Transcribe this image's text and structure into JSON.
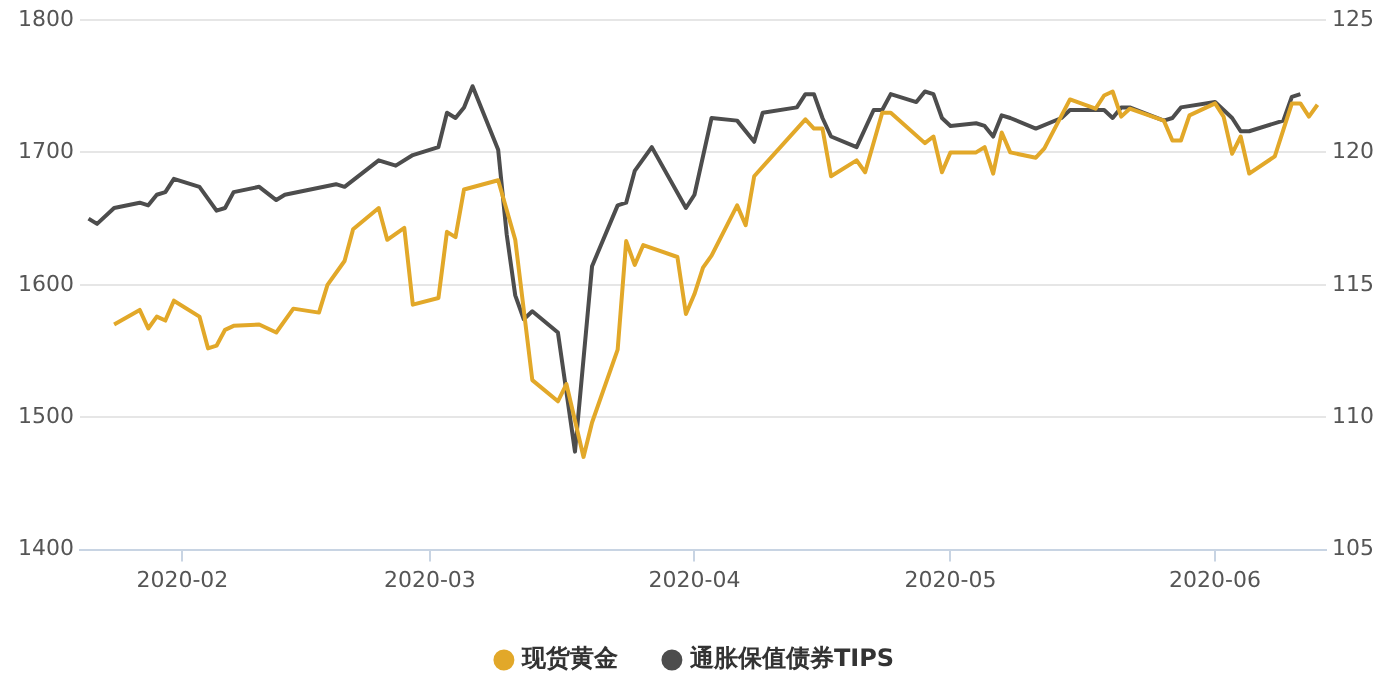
{
  "chart_data": {
    "type": "line",
    "xlim": [
      "2020-01-20",
      "2020-06-14"
    ],
    "xticks": [
      "2020-02",
      "2020-03",
      "2020-04",
      "2020-05",
      "2020-06"
    ],
    "ylim": [
      1400,
      1800
    ],
    "yticks": [
      1400,
      1500,
      1600,
      1700,
      1800
    ],
    "y2lim": [
      105,
      125
    ],
    "y2ticks": [
      105,
      110,
      115,
      120,
      125
    ],
    "grid": "y",
    "legend": "bottom",
    "line_style": "solid",
    "series": [
      {
        "name": "现货黄金",
        "color": "#e2a829",
        "x": [
          "2020-01-24",
          "2020-01-27",
          "2020-01-28",
          "2020-01-29",
          "2020-01-30",
          "2020-01-31",
          "2020-02-03",
          "2020-02-04",
          "2020-02-05",
          "2020-02-06",
          "2020-02-07",
          "2020-02-10",
          "2020-02-12",
          "2020-02-14",
          "2020-02-17",
          "2020-02-18",
          "2020-02-20",
          "2020-02-21",
          "2020-02-24",
          "2020-02-25",
          "2020-02-27",
          "2020-02-28",
          "2020-03-02",
          "2020-03-03",
          "2020-03-04",
          "2020-03-05",
          "2020-03-09",
          "2020-03-11",
          "2020-03-13",
          "2020-03-16",
          "2020-03-17",
          "2020-03-19",
          "2020-03-20",
          "2020-03-23",
          "2020-03-24",
          "2020-03-25",
          "2020-03-26",
          "2020-03-30",
          "2020-03-31",
          "2020-04-01",
          "2020-04-02",
          "2020-04-03",
          "2020-04-06",
          "2020-04-07",
          "2020-04-08",
          "2020-04-14",
          "2020-04-15",
          "2020-04-16",
          "2020-04-17",
          "2020-04-20",
          "2020-04-21",
          "2020-04-23",
          "2020-04-24",
          "2020-04-28",
          "2020-04-29",
          "2020-04-30",
          "2020-05-01",
          "2020-05-04",
          "2020-05-05",
          "2020-05-06",
          "2020-05-07",
          "2020-05-08",
          "2020-05-11",
          "2020-05-12",
          "2020-05-15",
          "2020-05-18",
          "2020-05-19",
          "2020-05-20",
          "2020-05-21",
          "2020-05-22",
          "2020-05-26",
          "2020-05-27",
          "2020-05-28",
          "2020-05-29",
          "2020-06-01",
          "2020-06-02",
          "2020-06-03",
          "2020-06-04",
          "2020-06-05",
          "2020-06-08",
          "2020-06-10",
          "2020-06-11",
          "2020-06-12",
          "2020-06-13"
        ],
        "values": [
          1570,
          1581,
          1567,
          1576,
          1573,
          1588,
          1576,
          1552,
          1554,
          1566,
          1569,
          1570,
          1564,
          1582,
          1579,
          1600,
          1618,
          1642,
          1658,
          1634,
          1643,
          1585,
          1590,
          1640,
          1636,
          1672,
          1679,
          1634,
          1528,
          1512,
          1525,
          1470,
          1496,
          1551,
          1633,
          1615,
          1630,
          1621,
          1578,
          1593,
          1613,
          1622,
          1660,
          1645,
          1682,
          1725,
          1718,
          1718,
          1682,
          1694,
          1685,
          1730,
          1730,
          1707,
          1712,
          1685,
          1700,
          1700,
          1704,
          1684,
          1715,
          1700,
          1696,
          1703,
          1740,
          1733,
          1743,
          1746,
          1727,
          1733,
          1724,
          1709,
          1709,
          1728,
          1737,
          1727,
          1699,
          1712,
          1684,
          1697,
          1737,
          1737,
          1727,
          1736
        ]
      },
      {
        "name": "通胀保值债券TIPS",
        "color": "#4d4d4d",
        "axis": "y2",
        "x": [
          "2020-01-21",
          "2020-01-22",
          "2020-01-24",
          "2020-01-27",
          "2020-01-28",
          "2020-01-29",
          "2020-01-30",
          "2020-01-31",
          "2020-02-03",
          "2020-02-05",
          "2020-02-06",
          "2020-02-07",
          "2020-02-10",
          "2020-02-12",
          "2020-02-13",
          "2020-02-19",
          "2020-02-20",
          "2020-02-24",
          "2020-02-26",
          "2020-02-28",
          "2020-03-02",
          "2020-03-03",
          "2020-03-04",
          "2020-03-05",
          "2020-03-06",
          "2020-03-09",
          "2020-03-10",
          "2020-03-11",
          "2020-03-12",
          "2020-03-13",
          "2020-03-16",
          "2020-03-18",
          "2020-03-20",
          "2020-03-23",
          "2020-03-24",
          "2020-03-25",
          "2020-03-27",
          "2020-03-31",
          "2020-04-01",
          "2020-04-03",
          "2020-04-06",
          "2020-04-08",
          "2020-04-09",
          "2020-04-13",
          "2020-04-14",
          "2020-04-15",
          "2020-04-16",
          "2020-04-17",
          "2020-04-20",
          "2020-04-22",
          "2020-04-23",
          "2020-04-24",
          "2020-04-27",
          "2020-04-28",
          "2020-04-29",
          "2020-04-30",
          "2020-05-01",
          "2020-05-04",
          "2020-05-05",
          "2020-05-06",
          "2020-05-07",
          "2020-05-08",
          "2020-05-11",
          "2020-05-14",
          "2020-05-15",
          "2020-05-19",
          "2020-05-20",
          "2020-05-21",
          "2020-05-22",
          "2020-05-26",
          "2020-05-27",
          "2020-05-28",
          "2020-06-01",
          "2020-06-03",
          "2020-06-04",
          "2020-06-05",
          "2020-06-09",
          "2020-06-10",
          "2020-06-11"
        ],
        "values": [
          117.5,
          117.3,
          117.9,
          118.1,
          118.0,
          118.4,
          118.5,
          119.0,
          118.7,
          117.8,
          117.9,
          118.5,
          118.7,
          118.2,
          118.4,
          118.8,
          118.7,
          119.7,
          119.5,
          119.9,
          120.2,
          121.5,
          121.3,
          121.7,
          122.5,
          120.1,
          116.9,
          114.6,
          113.7,
          114.0,
          113.2,
          108.7,
          115.7,
          118.0,
          118.1,
          119.3,
          120.2,
          117.9,
          118.4,
          121.3,
          121.2,
          120.4,
          121.5,
          121.7,
          122.2,
          122.2,
          121.3,
          120.6,
          120.2,
          121.6,
          121.6,
          122.2,
          121.9,
          122.3,
          122.2,
          121.3,
          121.0,
          121.1,
          121.0,
          120.6,
          121.4,
          121.3,
          120.9,
          121.3,
          121.6,
          121.6,
          121.3,
          121.7,
          121.7,
          121.2,
          121.3,
          121.7,
          121.9,
          121.3,
          120.8,
          120.8,
          121.2,
          122.1,
          122.2
        ]
      }
    ]
  }
}
